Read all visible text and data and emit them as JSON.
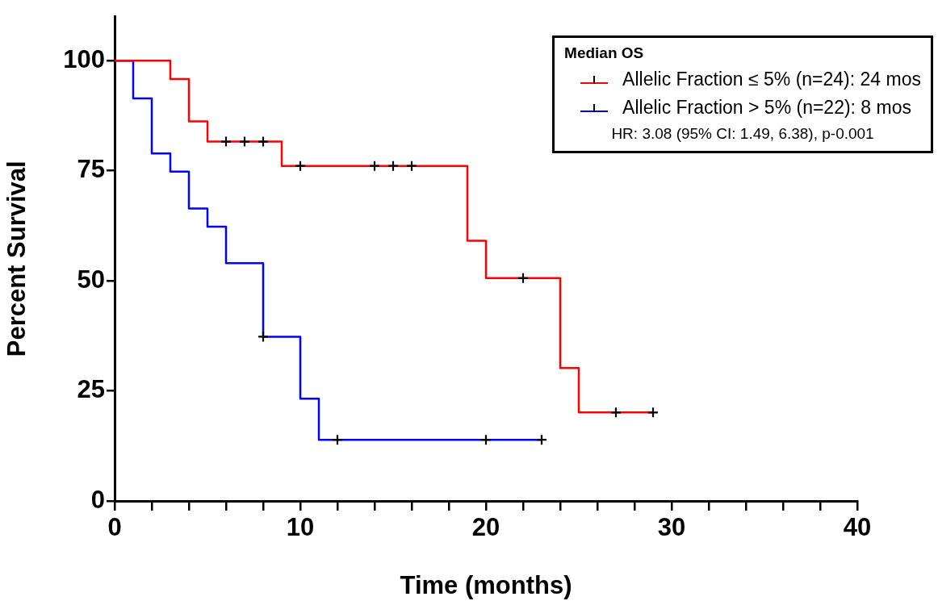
{
  "chart_data": {
    "type": "step",
    "xlabel": "Time (months)",
    "ylabel": "Percent Survival",
    "legend_title": "Median OS",
    "series": [
      {
        "name": "Allelic Fraction ≤ 5% (n=24): 24 mos",
        "color": "#ff0000",
        "x": [
          0,
          3,
          4,
          5,
          9,
          19,
          20,
          24,
          25,
          29
        ],
        "values": [
          100,
          95.8,
          86.2,
          81.6,
          76.1,
          59.1,
          50.6,
          30.2,
          20.1,
          20.1
        ]
      },
      {
        "name": "Allelic Fraction > 5% (n=22): 8 mos",
        "color": "#0000ff",
        "x": [
          0,
          1,
          2,
          3,
          4,
          5,
          6,
          8,
          10,
          11,
          23
        ],
        "values": [
          100,
          91.4,
          78.9,
          74.8,
          66.4,
          62.3,
          54,
          37.3,
          23.2,
          13.9,
          13.9
        ]
      },
      {
        "type": "scatter",
        "marker": "cross",
        "color": "#000000",
        "x": [
          6,
          7,
          8,
          10,
          14,
          15,
          16,
          22,
          27,
          29
        ],
        "values": [
          81.6,
          81.6,
          81.6,
          76.1,
          76.1,
          76.1,
          76.1,
          50.6,
          20.1,
          20.1
        ]
      },
      {
        "type": "scatter",
        "marker": "cross",
        "color": "#000000",
        "x": [
          8,
          12,
          20,
          23
        ],
        "values": [
          37.3,
          13.9,
          13.9,
          13.9
        ]
      }
    ],
    "xlim": [
      0,
      40
    ],
    "xticks": [
      0,
      {
        "value": 2,
        "label": null
      },
      {
        "value": 4,
        "label": null
      },
      {
        "value": 6,
        "label": null
      },
      {
        "value": 8,
        "label": null
      },
      10,
      {
        "value": 12,
        "label": null
      },
      {
        "value": 14,
        "label": null
      },
      {
        "value": 16,
        "label": null
      },
      {
        "value": 18,
        "label": null
      },
      20,
      {
        "value": 22,
        "label": null
      },
      {
        "value": 24,
        "label": null
      },
      {
        "value": 26,
        "label": null
      },
      {
        "value": 28,
        "label": null
      },
      30,
      {
        "value": 32,
        "label": null
      },
      {
        "value": 34,
        "label": null
      },
      {
        "value": 36,
        "label": null
      },
      {
        "value": 38,
        "label": null
      },
      40
    ],
    "ylim": [
      0,
      110
    ],
    "yticks": [
      0,
      25,
      50,
      75,
      100
    ],
    "grid": false,
    "legend": "top right",
    "annotations": [
      "HR: 3.08 (95% CI: 1.49, 6.38), p-0.001"
    ]
  }
}
